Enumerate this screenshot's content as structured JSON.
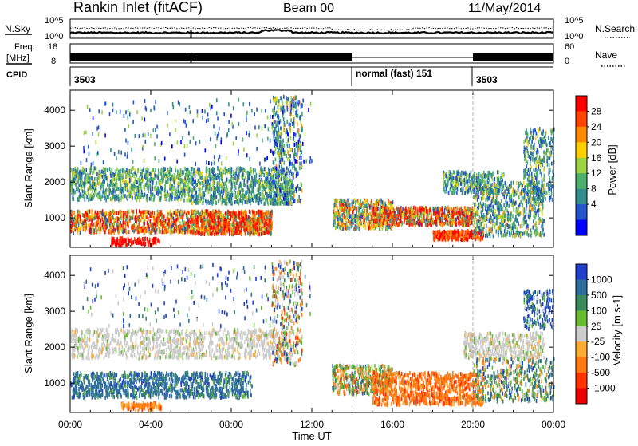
{
  "header": {
    "title": "Rankin Inlet (fitACF)",
    "beam": "Beam 00",
    "date": "11/May/2014"
  },
  "strips": {
    "nsky_label": "N.Sky",
    "nsky_ticks": [
      "10^5",
      "10^0"
    ],
    "nsearch_label": "N.Search",
    "nsearch_ticks": [
      "10^5",
      "10^0"
    ],
    "freq_label_1": "Freq.",
    "freq_label_2": "[MHz]",
    "freq_ticks": [
      "18",
      "8"
    ],
    "nave_label": "Nave",
    "nave_ticks": [
      "60",
      "0"
    ],
    "cpid_label": "CPID",
    "cpid_segments": [
      {
        "label": "3503",
        "start_hour": 0
      },
      {
        "label": "normal (fast) 151",
        "start_hour": 14.0
      },
      {
        "label": "3503",
        "start_hour": 20.0
      }
    ]
  },
  "chart_data": [
    {
      "type": "heatmap",
      "name": "power",
      "xlabel": "",
      "ylabel": "Slant Range [km]",
      "x_ticks": [
        "00:00",
        "04:00",
        "08:00",
        "12:00",
        "16:00",
        "20:00",
        "00:00"
      ],
      "x_range_hours": [
        0,
        24
      ],
      "yticks": [
        1000,
        2000,
        3000,
        4000
      ],
      "ylim": [
        180,
        4560
      ],
      "colorbar_label": "Power [dB]",
      "colorbar_ticks": [
        "28",
        "24",
        "20",
        "16",
        "12",
        "8",
        "4"
      ],
      "colorbar_colors": [
        "#ff0000",
        "#ff4400",
        "#ff8a00",
        "#ffd000",
        "#9bd340",
        "#4caf6a",
        "#338d8c",
        "#2255cc",
        "#0000ff"
      ]
    },
    {
      "type": "heatmap",
      "name": "velocity",
      "xlabel": "Time UT",
      "ylabel": "Slant Range [km]",
      "x_ticks": [
        "00:00",
        "04:00",
        "08:00",
        "12:00",
        "16:00",
        "20:00",
        "00:00"
      ],
      "x_range_hours": [
        0,
        24
      ],
      "yticks": [
        1000,
        2000,
        3000,
        4000
      ],
      "ylim": [
        180,
        4560
      ],
      "colorbar_label": "Velocity [m s-1]",
      "colorbar_ticks": [
        "1000",
        "500",
        "100",
        "25",
        "-25",
        "-100",
        "-500",
        "-1000"
      ],
      "colorbar_colors": [
        "#1f3fcc",
        "#2e6e9e",
        "#3b8a5a",
        "#66bb33",
        "#cccccc",
        "#ffaa33",
        "#ff7a10",
        "#ff3300",
        "#ee0000"
      ]
    }
  ]
}
